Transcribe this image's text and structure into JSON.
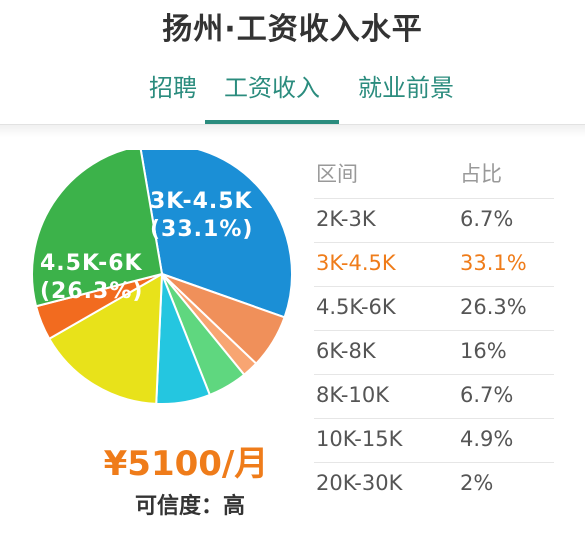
{
  "page": {
    "title": "扬州·工资收入水平"
  },
  "tabs": [
    {
      "label": "招聘",
      "active": false
    },
    {
      "label": "工资收入",
      "active": true
    },
    {
      "label": "就业前景",
      "active": false
    }
  ],
  "pie": {
    "slices": [
      {
        "label": "3K-4.5K",
        "pct": 33.1,
        "color": "#1b8fd6"
      },
      {
        "label": "2K-3K",
        "pct": 6.7,
        "color": "#f0905a"
      },
      {
        "label": "20K-30K",
        "pct": 2.0,
        "color": "#f8a572"
      },
      {
        "label": "10K-15K",
        "pct": 4.9,
        "color": "#5fd77f"
      },
      {
        "label": "8K-10K",
        "pct": 6.7,
        "color": "#24c6e0"
      },
      {
        "label": "6K-8K",
        "pct": 16.0,
        "color": "#e8e21a"
      },
      {
        "label": "",
        "pct": 4.3,
        "color": "#f26b1f"
      },
      {
        "label": "4.5K-6K",
        "pct": 26.3,
        "color": "#3cb24a"
      }
    ],
    "labels": {
      "a_range": "3K-4.5K",
      "a_pct": "(33.1%)",
      "b_range": "4.5K-6K",
      "b_pct": "(26.3%)"
    }
  },
  "summary": {
    "salary": "¥5100/月",
    "credibility": "可信度：高"
  },
  "table": {
    "headers": {
      "range": "区间",
      "ratio": "占比"
    },
    "rows": [
      {
        "range": "2K-3K",
        "ratio": "6.7%",
        "highlight": false
      },
      {
        "range": "3K-4.5K",
        "ratio": "33.1%",
        "highlight": true
      },
      {
        "range": "4.5K-6K",
        "ratio": "26.3%",
        "highlight": false
      },
      {
        "range": "6K-8K",
        "ratio": "16%",
        "highlight": false
      },
      {
        "range": "8K-10K",
        "ratio": "6.7%",
        "highlight": false
      },
      {
        "range": "10K-15K",
        "ratio": "4.9%",
        "highlight": false
      },
      {
        "range": "20K-30K",
        "ratio": "2%",
        "highlight": false
      }
    ]
  },
  "colors": {
    "accent": "#2b8c7e",
    "highlight": "#ef7c1a"
  }
}
